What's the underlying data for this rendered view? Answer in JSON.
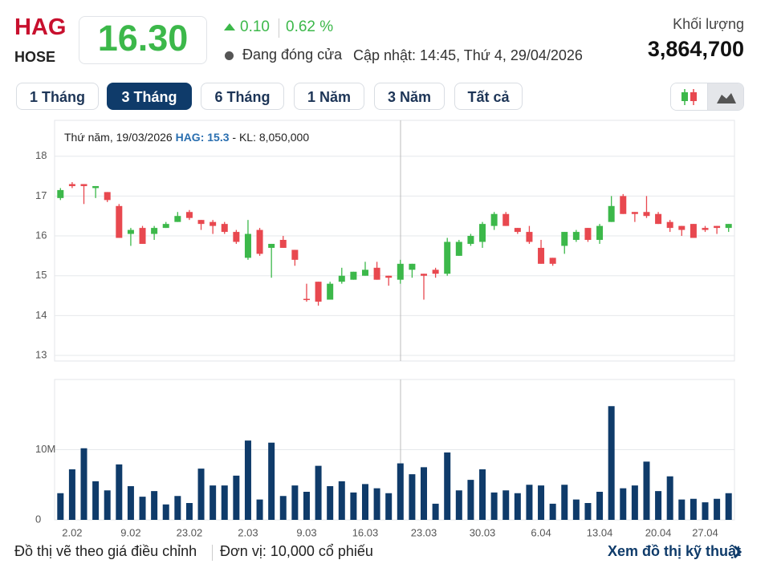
{
  "header": {
    "symbol": "HAG",
    "exchange": "HOSE",
    "price": "16.30",
    "change": "0.10",
    "change_percent": "0.62 %",
    "status": "Đang đóng cửa",
    "updated": "Cập nhật: 14:45, Thứ 4, 29/04/2026",
    "volume_label": "Khối lượng",
    "volume": "3,864,700"
  },
  "tabs": [
    "1 Tháng",
    "3 Tháng",
    "6 Tháng",
    "1 Năm",
    "3 Năm",
    "Tất cả"
  ],
  "tooltip": {
    "date": "Thứ năm, 19/03/2026",
    "symbol": "HAG: ",
    "price": "15.3",
    "volume": " - KL: 8,050,000"
  },
  "footer": {
    "note": "Đồ thị vẽ theo giá điều chỉnh",
    "unit": "Đơn vị: 10,000 cổ phiếu",
    "link": "Xem đồ thị kỹ thuật"
  },
  "chart_data": [
    {
      "type": "candlestick",
      "up_color": "#3cb84a",
      "down_color": "#e8484f",
      "open": [
        16.95,
        17.3,
        17.3,
        17.2,
        17.1,
        16.75,
        16.05,
        16.2,
        16.05,
        16.2,
        16.35,
        16.6,
        16.4,
        16.35,
        16.3,
        16.1,
        15.45,
        16.15,
        15.7,
        15.9,
        15.65,
        14.42,
        14.85,
        14.4,
        14.85,
        14.9,
        15.0,
        15.2,
        15.0,
        14.9,
        15.15,
        15.05,
        15.15,
        15.05,
        15.5,
        15.8,
        15.85,
        16.25,
        16.55,
        16.2,
        16.1,
        15.7,
        15.45,
        15.75,
        15.9,
        16.2,
        15.9,
        16.35,
        17.0,
        16.6,
        16.6,
        16.55,
        16.35,
        16.25,
        16.3,
        16.2,
        16.25,
        16.2
      ],
      "high": [
        17.2,
        17.35,
        17.3,
        17.25,
        17.1,
        16.8,
        16.2,
        16.25,
        16.25,
        16.35,
        16.6,
        16.65,
        16.4,
        16.4,
        16.35,
        16.15,
        16.4,
        16.2,
        15.8,
        16.0,
        15.65,
        14.8,
        14.85,
        14.85,
        15.2,
        15.1,
        15.35,
        15.35,
        15.0,
        15.4,
        15.3,
        15.05,
        15.2,
        15.95,
        15.9,
        16.05,
        16.35,
        16.6,
        16.6,
        16.2,
        16.25,
        15.9,
        15.45,
        16.1,
        16.15,
        16.2,
        16.3,
        17.0,
        17.05,
        16.6,
        17.0,
        16.6,
        16.4,
        16.25,
        16.3,
        16.25,
        16.25,
        16.3
      ],
      "low": [
        16.9,
        17.2,
        16.8,
        16.95,
        16.85,
        15.95,
        15.75,
        15.8,
        15.9,
        16.2,
        16.35,
        16.4,
        16.15,
        16.05,
        16.05,
        15.8,
        15.4,
        15.5,
        14.95,
        15.7,
        15.25,
        14.35,
        14.25,
        14.4,
        14.8,
        14.9,
        15.0,
        14.9,
        14.75,
        14.8,
        14.95,
        14.4,
        14.95,
        15.0,
        15.5,
        15.75,
        15.7,
        16.15,
        16.25,
        16.05,
        15.8,
        15.3,
        15.25,
        15.55,
        15.85,
        15.85,
        15.8,
        16.35,
        16.55,
        16.35,
        16.45,
        16.3,
        16.1,
        16.0,
        15.95,
        16.1,
        16.05,
        16.1
      ],
      "close": [
        17.15,
        17.25,
        17.25,
        17.25,
        16.9,
        15.95,
        16.15,
        15.8,
        16.2,
        16.3,
        16.5,
        16.45,
        16.3,
        16.25,
        16.1,
        15.85,
        16.05,
        15.55,
        15.8,
        15.7,
        15.4,
        14.4,
        14.35,
        14.8,
        15.0,
        15.1,
        15.15,
        14.9,
        14.95,
        15.3,
        15.3,
        15.0,
        15.05,
        15.85,
        15.85,
        16.0,
        16.3,
        16.55,
        16.25,
        16.1,
        15.85,
        15.3,
        15.3,
        16.1,
        16.1,
        15.9,
        16.25,
        16.75,
        16.55,
        16.55,
        16.5,
        16.3,
        16.2,
        16.15,
        15.95,
        16.15,
        16.2,
        16.3
      ],
      "ylim": [
        12.86,
        18.9
      ],
      "yticks": [
        13,
        14,
        15,
        16,
        17,
        18
      ],
      "grid": true
    },
    {
      "type": "bar",
      "color": "#0f3b6a",
      "categories": [
        null,
        "2.02",
        null,
        null,
        null,
        null,
        "9.02",
        null,
        null,
        null,
        null,
        "23.02",
        null,
        null,
        null,
        null,
        "2.03",
        null,
        null,
        null,
        null,
        "9.03",
        null,
        null,
        null,
        null,
        "16.03",
        null,
        null,
        null,
        null,
        "23.03",
        null,
        null,
        null,
        null,
        "30.03",
        null,
        null,
        null,
        null,
        "6.04",
        null,
        null,
        null,
        null,
        "13.04",
        null,
        null,
        null,
        null,
        "20.04",
        null,
        null,
        null,
        "27.04",
        null,
        null
      ],
      "values": [
        3800000,
        7200000,
        10200000,
        5500000,
        4200000,
        7900000,
        4800000,
        3300000,
        4100000,
        2200000,
        3400000,
        2400000,
        7300000,
        4900000,
        4900000,
        6300000,
        11300000,
        2900000,
        11000000,
        3400000,
        4900000,
        4000000,
        7700000,
        4800000,
        5500000,
        3900000,
        5100000,
        4500000,
        3800000,
        8050000,
        6500000,
        7500000,
        2300000,
        9600000,
        4200000,
        5700000,
        7200000,
        3900000,
        4200000,
        3800000,
        5000000,
        4900000,
        2300000,
        5000000,
        2900000,
        2400000,
        4000000,
        16200000,
        4500000,
        4900000,
        8300000,
        4100000,
        6200000,
        2900000,
        3000000,
        2500000,
        3000000,
        3800000
      ],
      "ylim": [
        0,
        20000000
      ],
      "yticks": [
        0,
        {
          "value": 10000000,
          "label": "10M"
        }
      ],
      "grid": true
    }
  ]
}
